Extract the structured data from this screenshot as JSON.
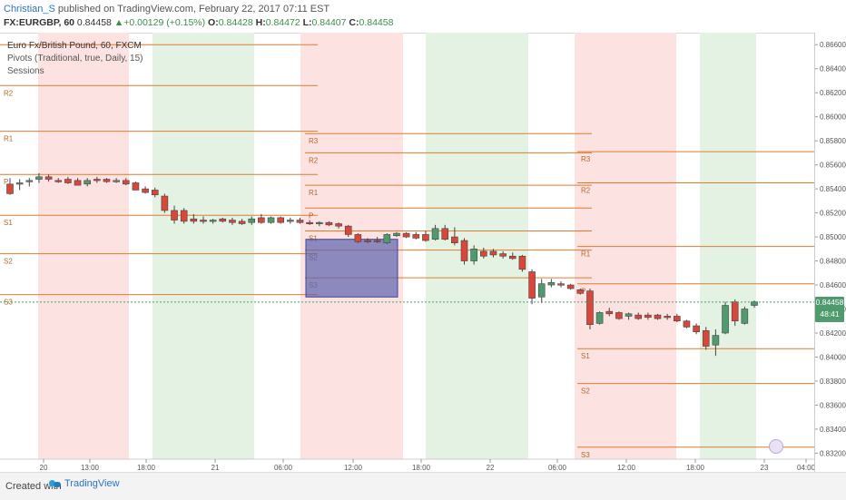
{
  "header": {
    "author": "Christian_S",
    "published_text": " published on TradingView.com, February 22, 2017 07:11 EST",
    "symbol_line": "FX:EURGBP, 60",
    "price": "0.84458",
    "change": "+0.00129 (+0.15%)",
    "o_label": "O:",
    "o_val": "0.84428",
    "h_label": "H:",
    "h_val": "0.84472",
    "l_label": "L:",
    "l_val": "0.84407",
    "c_label": "C:",
    "c_val": "0.84458"
  },
  "legend": {
    "title": "Euro Fx/British Pound, 60, FXCM",
    "pivots": "Pivots (Traditional, true, Daily, 15)",
    "sessions": "Sessions"
  },
  "price_axis": {
    "ticks": [
      "0.86600",
      "0.86400",
      "0.86200",
      "0.86000",
      "0.85800",
      "0.85600",
      "0.85400",
      "0.85200",
      "0.85000",
      "0.84800",
      "0.84600",
      "0.84400",
      "0.84200",
      "0.84000",
      "0.83800",
      "0.83600",
      "0.83400",
      "0.83200"
    ],
    "last_price": "0.84458",
    "countdown": "48:41"
  },
  "time_axis": {
    "ticks": [
      "20",
      "13:00",
      "18:00",
      "21",
      "06:00",
      "12:00",
      "18:00",
      "22",
      "06:00",
      "12:00",
      "18:00",
      "23",
      "04:00"
    ]
  },
  "pivot_labels": {
    "day1": [
      "R2",
      "R1",
      "P",
      "S1",
      "S2",
      "S3"
    ],
    "day2": [
      "R3",
      "R2",
      "R1",
      "P",
      "S1",
      "S2",
      "S3"
    ],
    "day3": [
      "R3",
      "R2",
      "R1",
      "P",
      "S1",
      "S2",
      "S3"
    ]
  },
  "footer": {
    "created": "Created with",
    "brand": "TradingView"
  },
  "colors": {
    "bull": "#4f9b6e",
    "bear": "#d9463a",
    "pivot_line": "#e07b2e",
    "session_red": "#fde2e2",
    "session_green": "#e4f2e4",
    "selection_box": "#5b64b0"
  },
  "chart_data": {
    "type": "candlestick",
    "price_range": [
      0.8315,
      0.867
    ],
    "candles": [
      {
        "o": 0.8544,
        "h": 0.8549,
        "l": 0.8535,
        "c": 0.8536
      },
      {
        "o": 0.8544,
        "h": 0.8548,
        "l": 0.8539,
        "c": 0.8545
      },
      {
        "o": 0.8546,
        "h": 0.8549,
        "l": 0.8542,
        "c": 0.8547
      },
      {
        "o": 0.8548,
        "h": 0.8553,
        "l": 0.8545,
        "c": 0.855
      },
      {
        "o": 0.855,
        "h": 0.8552,
        "l": 0.8546,
        "c": 0.8548
      },
      {
        "o": 0.8547,
        "h": 0.8549,
        "l": 0.8545,
        "c": 0.8546
      },
      {
        "o": 0.8548,
        "h": 0.855,
        "l": 0.8544,
        "c": 0.8545
      },
      {
        "o": 0.8547,
        "h": 0.8549,
        "l": 0.8543,
        "c": 0.8543
      },
      {
        "o": 0.8544,
        "h": 0.8549,
        "l": 0.8542,
        "c": 0.8547
      },
      {
        "o": 0.8548,
        "h": 0.855,
        "l": 0.8545,
        "c": 0.8547
      },
      {
        "o": 0.8548,
        "h": 0.8549,
        "l": 0.8545,
        "c": 0.8546
      },
      {
        "o": 0.8547,
        "h": 0.8549,
        "l": 0.8545,
        "c": 0.8547
      },
      {
        "o": 0.8547,
        "h": 0.8549,
        "l": 0.8543,
        "c": 0.8544
      },
      {
        "o": 0.8545,
        "h": 0.8546,
        "l": 0.8539,
        "c": 0.8539
      },
      {
        "o": 0.854,
        "h": 0.8542,
        "l": 0.8536,
        "c": 0.8537
      },
      {
        "o": 0.8539,
        "h": 0.8541,
        "l": 0.8533,
        "c": 0.8535
      },
      {
        "o": 0.8534,
        "h": 0.8536,
        "l": 0.852,
        "c": 0.8522
      },
      {
        "o": 0.8522,
        "h": 0.8526,
        "l": 0.8511,
        "c": 0.8514
      },
      {
        "o": 0.8522,
        "h": 0.8524,
        "l": 0.8511,
        "c": 0.8513
      },
      {
        "o": 0.8515,
        "h": 0.8519,
        "l": 0.8511,
        "c": 0.8513
      },
      {
        "o": 0.8514,
        "h": 0.8517,
        "l": 0.8511,
        "c": 0.8513
      },
      {
        "o": 0.8513,
        "h": 0.8515,
        "l": 0.8511,
        "c": 0.8514
      },
      {
        "o": 0.8515,
        "h": 0.8516,
        "l": 0.8512,
        "c": 0.8513
      },
      {
        "o": 0.8514,
        "h": 0.8516,
        "l": 0.851,
        "c": 0.8512
      },
      {
        "o": 0.8513,
        "h": 0.8515,
        "l": 0.851,
        "c": 0.8511
      },
      {
        "o": 0.8512,
        "h": 0.8517,
        "l": 0.851,
        "c": 0.8515
      },
      {
        "o": 0.8516,
        "h": 0.8519,
        "l": 0.8511,
        "c": 0.8512
      },
      {
        "o": 0.8512,
        "h": 0.8517,
        "l": 0.8511,
        "c": 0.8516
      },
      {
        "o": 0.8516,
        "h": 0.8517,
        "l": 0.8511,
        "c": 0.8512
      },
      {
        "o": 0.8513,
        "h": 0.8516,
        "l": 0.8511,
        "c": 0.8514
      },
      {
        "o": 0.8514,
        "h": 0.8516,
        "l": 0.8511,
        "c": 0.8512
      },
      {
        "o": 0.8512,
        "h": 0.8514,
        "l": 0.851,
        "c": 0.8511
      },
      {
        "o": 0.8511,
        "h": 0.8513,
        "l": 0.8509,
        "c": 0.8512
      },
      {
        "o": 0.8512,
        "h": 0.8513,
        "l": 0.8509,
        "c": 0.851
      },
      {
        "o": 0.8511,
        "h": 0.8512,
        "l": 0.8507,
        "c": 0.8509
      },
      {
        "o": 0.8509,
        "h": 0.851,
        "l": 0.85,
        "c": 0.8502
      },
      {
        "o": 0.8502,
        "h": 0.8503,
        "l": 0.8495,
        "c": 0.8496
      },
      {
        "o": 0.8497,
        "h": 0.8499,
        "l": 0.8495,
        "c": 0.8496
      },
      {
        "o": 0.8497,
        "h": 0.85,
        "l": 0.8495,
        "c": 0.8496
      },
      {
        "o": 0.8495,
        "h": 0.8503,
        "l": 0.8494,
        "c": 0.8502
      },
      {
        "o": 0.8501,
        "h": 0.8504,
        "l": 0.85,
        "c": 0.8503
      },
      {
        "o": 0.8503,
        "h": 0.8504,
        "l": 0.8499,
        "c": 0.85
      },
      {
        "o": 0.8502,
        "h": 0.8504,
        "l": 0.8498,
        "c": 0.8499
      },
      {
        "o": 0.8502,
        "h": 0.8505,
        "l": 0.8496,
        "c": 0.8497
      },
      {
        "o": 0.8498,
        "h": 0.851,
        "l": 0.8497,
        "c": 0.8507
      },
      {
        "o": 0.8507,
        "h": 0.851,
        "l": 0.8497,
        "c": 0.8498
      },
      {
        "o": 0.85,
        "h": 0.8508,
        "l": 0.8493,
        "c": 0.8495
      },
      {
        "o": 0.8497,
        "h": 0.8499,
        "l": 0.8477,
        "c": 0.848
      },
      {
        "o": 0.848,
        "h": 0.8493,
        "l": 0.8477,
        "c": 0.849
      },
      {
        "o": 0.8488,
        "h": 0.8491,
        "l": 0.8482,
        "c": 0.8484
      },
      {
        "o": 0.8488,
        "h": 0.849,
        "l": 0.8483,
        "c": 0.8485
      },
      {
        "o": 0.8486,
        "h": 0.8488,
        "l": 0.8482,
        "c": 0.8484
      },
      {
        "o": 0.8484,
        "h": 0.8487,
        "l": 0.8481,
        "c": 0.8482
      },
      {
        "o": 0.8484,
        "h": 0.8485,
        "l": 0.8471,
        "c": 0.8473
      },
      {
        "o": 0.8471,
        "h": 0.8473,
        "l": 0.8444,
        "c": 0.8449
      },
      {
        "o": 0.845,
        "h": 0.8465,
        "l": 0.8445,
        "c": 0.8461
      },
      {
        "o": 0.846,
        "h": 0.8465,
        "l": 0.8458,
        "c": 0.8462
      },
      {
        "o": 0.8461,
        "h": 0.8463,
        "l": 0.8458,
        "c": 0.846
      },
      {
        "o": 0.846,
        "h": 0.8461,
        "l": 0.8456,
        "c": 0.8457
      },
      {
        "o": 0.8456,
        "h": 0.8457,
        "l": 0.8452,
        "c": 0.8453
      },
      {
        "o": 0.8455,
        "h": 0.8457,
        "l": 0.8423,
        "c": 0.8427
      },
      {
        "o": 0.8428,
        "h": 0.8438,
        "l": 0.8427,
        "c": 0.8437
      },
      {
        "o": 0.8438,
        "h": 0.8441,
        "l": 0.8434,
        "c": 0.8436
      },
      {
        "o": 0.8437,
        "h": 0.8438,
        "l": 0.8431,
        "c": 0.8432
      },
      {
        "o": 0.8434,
        "h": 0.8437,
        "l": 0.8431,
        "c": 0.8436
      },
      {
        "o": 0.8435,
        "h": 0.8437,
        "l": 0.8431,
        "c": 0.8432
      },
      {
        "o": 0.8435,
        "h": 0.8437,
        "l": 0.8431,
        "c": 0.8433
      },
      {
        "o": 0.8435,
        "h": 0.8436,
        "l": 0.8431,
        "c": 0.8432
      },
      {
        "o": 0.8434,
        "h": 0.8436,
        "l": 0.8431,
        "c": 0.8433
      },
      {
        "o": 0.8434,
        "h": 0.8436,
        "l": 0.8429,
        "c": 0.843
      },
      {
        "o": 0.843,
        "h": 0.8431,
        "l": 0.8424,
        "c": 0.8425
      },
      {
        "o": 0.8426,
        "h": 0.8428,
        "l": 0.8419,
        "c": 0.8421
      },
      {
        "o": 0.8422,
        "h": 0.8425,
        "l": 0.8406,
        "c": 0.8409
      },
      {
        "o": 0.841,
        "h": 0.8423,
        "l": 0.8401,
        "c": 0.8418
      },
      {
        "o": 0.842,
        "h": 0.8446,
        "l": 0.8419,
        "c": 0.8443
      },
      {
        "o": 0.8446,
        "h": 0.8448,
        "l": 0.8426,
        "c": 0.843
      },
      {
        "o": 0.8428,
        "h": 0.8442,
        "l": 0.8427,
        "c": 0.844
      },
      {
        "o": 0.8443,
        "h": 0.8447,
        "l": 0.8441,
        "c": 0.8446
      }
    ]
  }
}
